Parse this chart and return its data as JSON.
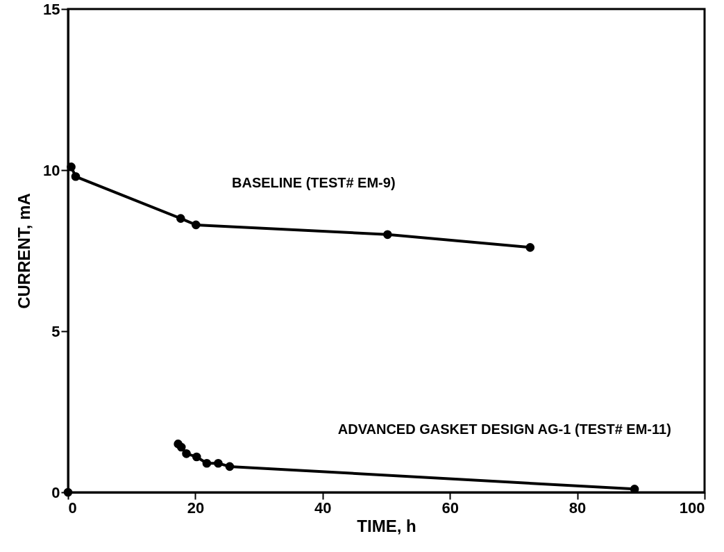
{
  "chart_data": {
    "type": "line",
    "xlabel": "TIME, h",
    "ylabel": "CURRENT, mA",
    "xlim": [
      0,
      100
    ],
    "xticks": [
      0,
      20,
      40,
      60,
      80,
      100
    ],
    "ylim": [
      0,
      15
    ],
    "yticks": [
      0,
      5,
      10,
      15
    ],
    "grid": false,
    "marker": "circle",
    "line_style": "solid",
    "series": [
      {
        "name": "BASELINE (TEST# EM-9)",
        "color": "#000000",
        "x": [
          0.5,
          1.2,
          17.7,
          20.1,
          50.2,
          72.6
        ],
        "values": [
          10.1,
          9.8,
          8.5,
          8.3,
          8.0,
          7.6
        ]
      },
      {
        "name": "ADVANCED GASKET DESIGN AG-1 (TEST# EM-11)",
        "color": "#000000",
        "x": [
          17.3,
          17.8,
          18.6,
          20.2,
          21.8,
          23.6,
          25.4,
          89
        ],
        "values": [
          1.5,
          1.4,
          1.2,
          1.1,
          0.9,
          0.9,
          0.8,
          0.1
        ]
      },
      {
        "type": "scatter",
        "color": "#000000",
        "x": [
          0
        ],
        "values": [
          0
        ]
      }
    ]
  }
}
